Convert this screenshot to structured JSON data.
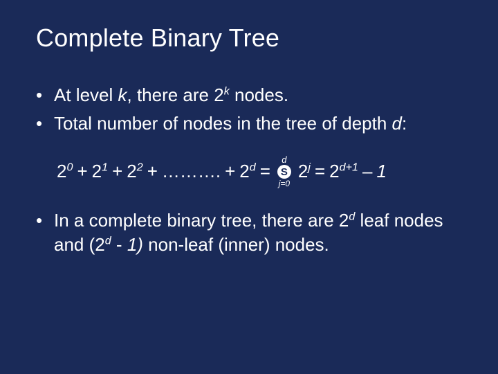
{
  "colors": {
    "background": "#1a2a58",
    "text": "#ffffff"
  },
  "typography": {
    "title_fontsize": 36,
    "body_fontsize": 26,
    "font_family": "Arial"
  },
  "title": "Complete Binary Tree",
  "bullet1": {
    "pre": "At level ",
    "var": "k",
    "mid": ", there are 2",
    "exp": "k",
    "post": " nodes."
  },
  "bullet2": {
    "pre": "Total number of nodes in the tree of depth ",
    "var": "d",
    "post": ":"
  },
  "formula": {
    "t0_base": "2",
    "t0_exp": "0",
    "plus": "+",
    "t1_base": "2",
    "t1_exp": "1",
    "t2_base": "2",
    "t2_exp": "2",
    "dots": "……….",
    "td_base": "2",
    "td_exp": "d",
    "eq": "=",
    "sigma_top": "d",
    "sigma_sym": "S",
    "sigma_bot": "j=0",
    "tj_base": "2",
    "tj_exp": "j",
    "tr_base": "2",
    "tr_exp": "d+1",
    "minus": "–",
    "one": "1"
  },
  "bullet3": {
    "pre": "In a complete binary tree, there are 2",
    "exp1": "d",
    "mid1": " leaf nodes and (2",
    "exp2": "d",
    "mid2": " - ",
    "one": "1)",
    "post": " non-leaf (inner) nodes."
  }
}
